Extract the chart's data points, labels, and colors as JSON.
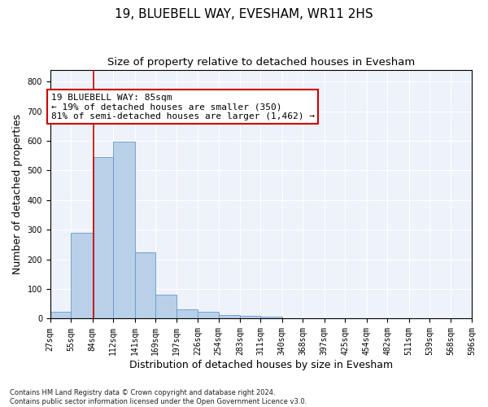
{
  "title": "19, BLUEBELL WAY, EVESHAM, WR11 2HS",
  "subtitle": "Size of property relative to detached houses in Evesham",
  "xlabel": "Distribution of detached houses by size in Evesham",
  "ylabel": "Number of detached properties",
  "bar_color": "#b8d0e8",
  "bar_edge_color": "#6699cc",
  "background_color": "#eef2fa",
  "grid_color": "#ffffff",
  "vline_x": 85,
  "vline_color": "#cc0000",
  "annotation_text": "19 BLUEBELL WAY: 85sqm\n← 19% of detached houses are smaller (350)\n81% of semi-detached houses are larger (1,462) →",
  "annotation_box_color": "#ffffff",
  "annotation_box_edge_color": "#cc0000",
  "bins": [
    27,
    55,
    84,
    112,
    141,
    169,
    197,
    226,
    254,
    283,
    311,
    340,
    368,
    397,
    425,
    454,
    482,
    511,
    539,
    568,
    596
  ],
  "bin_labels": [
    "27sqm",
    "55sqm",
    "84sqm",
    "112sqm",
    "141sqm",
    "169sqm",
    "197sqm",
    "226sqm",
    "254sqm",
    "283sqm",
    "311sqm",
    "340sqm",
    "368sqm",
    "397sqm",
    "425sqm",
    "454sqm",
    "482sqm",
    "511sqm",
    "539sqm",
    "568sqm",
    "596sqm"
  ],
  "bar_heights": [
    22,
    290,
    545,
    598,
    225,
    80,
    32,
    22,
    12,
    9,
    6,
    0,
    0,
    0,
    0,
    0,
    0,
    0,
    0,
    0
  ],
  "ylim": [
    0,
    840
  ],
  "footnote": "Contains HM Land Registry data © Crown copyright and database right 2024.\nContains public sector information licensed under the Open Government Licence v3.0.",
  "title_fontsize": 11,
  "subtitle_fontsize": 9.5,
  "tick_fontsize": 7,
  "ylabel_fontsize": 9,
  "xlabel_fontsize": 9,
  "annotation_fontsize": 8,
  "footnote_fontsize": 6
}
